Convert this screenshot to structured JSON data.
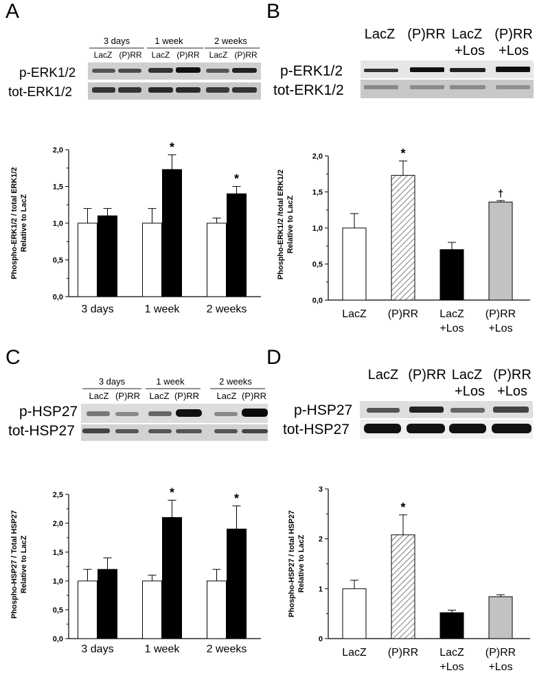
{
  "panels": {
    "A": {
      "letter": "A",
      "blot": {
        "groups": [
          "3 days",
          "1 week",
          "2 weeks"
        ],
        "lanes": [
          "LacZ",
          "(P)RR",
          "LacZ",
          "(P)RR",
          "LacZ",
          "(P)RR"
        ],
        "rows": [
          "p-ERK1/2",
          "tot-ERK1/2"
        ]
      }
    },
    "B": {
      "letter": "B",
      "blot": {
        "lanes": [
          "LacZ",
          "(P)RR",
          "LacZ\n+Los",
          "(P)RR\n+Los"
        ],
        "rows": [
          "p-ERK1/2",
          "tot-ERK1/2"
        ]
      }
    },
    "C": {
      "letter": "C",
      "blot": {
        "groups": [
          "3 days",
          "1 week",
          "2 weeks"
        ],
        "lanes": [
          "LacZ",
          "(P)RR",
          "LacZ",
          "(P)RR",
          "LacZ",
          "(P)RR"
        ],
        "rows": [
          "p-HSP27",
          "tot-HSP27"
        ]
      }
    },
    "D": {
      "letter": "D",
      "blot": {
        "lanes": [
          "LacZ",
          "(P)RR",
          "LacZ\n+Los",
          "(P)RR\n+Los"
        ],
        "rows": [
          "p-HSP27",
          "tot-HSP27"
        ]
      }
    }
  },
  "chart_data": [
    {
      "panel": "A",
      "type": "bar",
      "ylabel": "Phospho-ERK1/2 / total ERK1/2\nRelative to LacZ",
      "ylim": [
        0,
        2.0
      ],
      "yticks": [
        "0,0",
        "0,5",
        "1,0",
        "1,5",
        "2,0"
      ],
      "categories": [
        "3 days",
        "1 week",
        "2 weeks"
      ],
      "series": [
        {
          "values": [
            1.0,
            1.0,
            1.0
          ],
          "errors": [
            0.2,
            0.2,
            0.07
          ],
          "fill": "#ffffff"
        },
        {
          "values": [
            1.1,
            1.73,
            1.4
          ],
          "errors": [
            0.1,
            0.2,
            0.1
          ],
          "fill": "#000000"
        }
      ],
      "annotations": [
        {
          "category": "1 week",
          "series": 1,
          "text": "*"
        },
        {
          "category": "2 weeks",
          "series": 1,
          "text": "*"
        }
      ]
    },
    {
      "panel": "B",
      "type": "bar",
      "ylabel": "Phospho-ERK1/2 /total ERK1/2\nRelative to LacZ",
      "ylim": [
        0,
        2.0
      ],
      "yticks": [
        "0,0",
        "0,5",
        "1,0",
        "1,5",
        "2,0"
      ],
      "categories": [
        "LacZ",
        "(P)RR",
        "LacZ\n+Los",
        "(P)RR\n+Los"
      ],
      "values": [
        1.0,
        1.73,
        0.7,
        1.36
      ],
      "errors": [
        0.2,
        0.2,
        0.1,
        0.02
      ],
      "fills": [
        "white",
        "hatch",
        "black",
        "gray"
      ],
      "annotations": [
        {
          "category": "(P)RR",
          "text": "*"
        },
        {
          "category": "(P)RR\n+Los",
          "text": "†"
        }
      ]
    },
    {
      "panel": "C",
      "type": "bar",
      "ylabel": "Phospho-HSP27 / Total HSP27\nRelative to LacZ",
      "ylim": [
        0,
        2.5
      ],
      "yticks": [
        "0,0",
        "0,5",
        "1,0",
        "1,5",
        "2,0",
        "2,5"
      ],
      "categories": [
        "3 days",
        "1 week",
        "2 weeks"
      ],
      "series": [
        {
          "values": [
            1.0,
            1.0,
            1.0
          ],
          "errors": [
            0.2,
            0.1,
            0.2
          ],
          "fill": "#ffffff"
        },
        {
          "values": [
            1.2,
            2.1,
            1.9
          ],
          "errors": [
            0.2,
            0.3,
            0.4
          ],
          "fill": "#000000"
        }
      ],
      "annotations": [
        {
          "category": "1 week",
          "series": 1,
          "text": "*"
        },
        {
          "category": "2 weeks",
          "series": 1,
          "text": "*"
        }
      ]
    },
    {
      "panel": "D",
      "type": "bar",
      "ylabel": "Phospho-HSP27 / total HSP27\nRelative to LacZ",
      "ylim": [
        0,
        3
      ],
      "yticks": [
        "0",
        "1",
        "2",
        "3"
      ],
      "categories": [
        "LacZ",
        "(P)RR",
        "LacZ\n+Los",
        "(P)RR\n+Los"
      ],
      "values": [
        1.0,
        2.08,
        0.52,
        0.84
      ],
      "errors": [
        0.17,
        0.4,
        0.05,
        0.04
      ],
      "fills": [
        "white",
        "hatch",
        "black",
        "gray"
      ],
      "annotations": [
        {
          "category": "(P)RR",
          "text": "*"
        }
      ]
    }
  ]
}
